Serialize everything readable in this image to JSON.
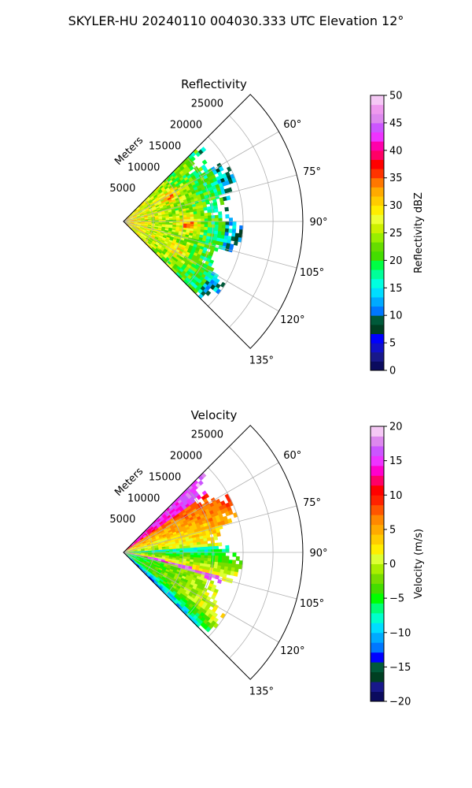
{
  "figure": {
    "suptitle": "SKYLER-HU  20240110  004030.333 UTC Elevation 12°"
  },
  "chart_data": [
    {
      "type": "polar-sector-ppi",
      "title": "Reflectivity",
      "radial_label": "Meters",
      "radial_range": [
        0,
        30000
      ],
      "radial_ticks": [
        "5000",
        "10000",
        "15000",
        "20000",
        "25000"
      ],
      "angular_range_deg": [
        45,
        135
      ],
      "angular_ticks": [
        "60°",
        "75°",
        "90°",
        "105°",
        "120°",
        "135°"
      ],
      "grid": true,
      "data_extent_m": 20000,
      "colorbar": {
        "label": "Reflectivity dBZ",
        "range": [
          0,
          50
        ],
        "ticks": [
          "0",
          "5",
          "10",
          "15",
          "20",
          "25",
          "30",
          "35",
          "40",
          "45",
          "50"
        ],
        "colors": [
          "#0b0b5e",
          "#18188a",
          "#1010c8",
          "#0000ff",
          "#003f22",
          "#005a3a",
          "#0077ff",
          "#00aaff",
          "#00ddff",
          "#00ffe0",
          "#00ff99",
          "#00ff44",
          "#44dd00",
          "#66dd00",
          "#99ee00",
          "#ccf000",
          "#eeff33",
          "#ffee00",
          "#ffcc00",
          "#ffaa00",
          "#ff7700",
          "#ff3300",
          "#ff0000",
          "#ff0066",
          "#ff00aa",
          "#ee33ff",
          "#cc55ff",
          "#dd88ee",
          "#ee99ee",
          "#f5c8f5"
        ]
      }
    },
    {
      "type": "polar-sector-ppi",
      "title": "Velocity",
      "radial_label": "Meters",
      "radial_range": [
        0,
        30000
      ],
      "radial_ticks": [
        "5000",
        "10000",
        "15000",
        "20000",
        "25000"
      ],
      "angular_range_deg": [
        45,
        135
      ],
      "angular_ticks": [
        "60°",
        "75°",
        "90°",
        "105°",
        "120°",
        "135°"
      ],
      "grid": true,
      "data_extent_m": 20000,
      "colorbar": {
        "label": "Velocity (m/s)",
        "range": [
          -20,
          20
        ],
        "ticks": [
          "−20",
          "−15",
          "−10",
          "−5",
          "0",
          "5",
          "10",
          "15",
          "20"
        ],
        "colors": [
          "#0b0b5e",
          "#18188a",
          "#003f22",
          "#005a3a",
          "#0000ff",
          "#0077ff",
          "#00aaff",
          "#00ddff",
          "#00ffcc",
          "#00ff77",
          "#00ff00",
          "#44dd00",
          "#77dd00",
          "#aaee00",
          "#ddff33",
          "#ffee00",
          "#ffcc00",
          "#ffaa00",
          "#ff8800",
          "#ff5500",
          "#ff2200",
          "#ff0000",
          "#ff0066",
          "#ff00cc",
          "#ee33ff",
          "#cc55ff",
          "#dd88ee",
          "#f5c8f5"
        ]
      }
    }
  ]
}
